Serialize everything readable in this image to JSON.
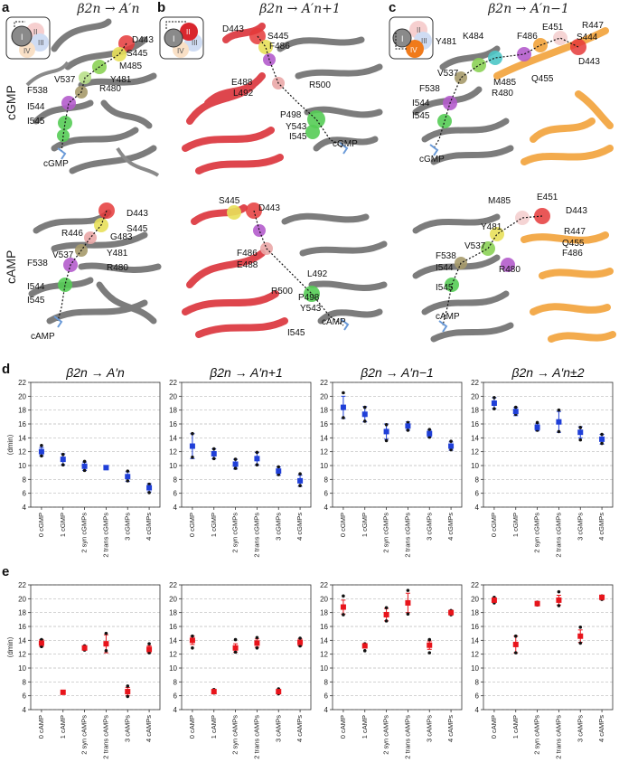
{
  "panel_letters": [
    "a",
    "b",
    "c",
    "d",
    "e"
  ],
  "row_labels": {
    "cgmp": "cGMP",
    "camp": "cAMP"
  },
  "top_titles": [
    "β2n → A′n",
    "β2n → A′n+1",
    "β2n → A′n−1"
  ],
  "legend_subunits": [
    "I",
    "II",
    "III",
    "IV"
  ],
  "structures": {
    "a_cgmp": {
      "labels": [
        "D443",
        "S445",
        "M485",
        "Y481",
        "R480",
        "F538",
        "V537",
        "I544",
        "I545",
        "cGMP"
      ]
    },
    "a_camp": {
      "labels": [
        "D443",
        "S445",
        "R446",
        "G483",
        "V537",
        "Y481",
        "F538",
        "R480",
        "I544",
        "I545",
        "cAMP"
      ]
    },
    "b_cgmp": {
      "labels": [
        "D443",
        "S445",
        "F486",
        "E488",
        "L492",
        "R500",
        "P498",
        "Y543",
        "I545",
        "cGMP"
      ]
    },
    "b_camp": {
      "labels": [
        "S445",
        "D443",
        "F486",
        "E488",
        "L492",
        "R500",
        "P498",
        "Y543",
        "I545",
        "cAMP"
      ]
    },
    "c_cgmp": {
      "labels": [
        "Y481",
        "K484",
        "F486",
        "E451",
        "R447",
        "S444",
        "D443",
        "V537",
        "M485",
        "Q455",
        "F538",
        "R480",
        "I544",
        "I545",
        "cGMP"
      ]
    },
    "c_camp": {
      "labels": [
        "M485",
        "E451",
        "D443",
        "R447",
        "Y481",
        "Q455",
        "F486",
        "V537",
        "F538",
        "I544",
        "R480",
        "I545",
        "cAMP"
      ]
    }
  },
  "colors": {
    "protein_grey": "#6e6e6e",
    "subunit_red": "#d9262e",
    "subunit_orange": "#f2a33a",
    "blue_marker": "#1f3fd8",
    "red_marker": "#e8141b",
    "grid": "#bbbbbb"
  },
  "chart_data": [
    {
      "id": "d1",
      "type": "scatter",
      "title": "β2n → A′n",
      "ylabel": "⟨dmin⟩",
      "ylim": [
        4,
        22
      ],
      "yticks": [
        4,
        6,
        8,
        10,
        12,
        14,
        16,
        18,
        20,
        22
      ],
      "grid": "horizontal dashed",
      "marker_color": "#1f3fd8",
      "categories": [
        "0 cGMP",
        "1 cGMP",
        "2 syn cGMPs",
        "2 trans cGMPs",
        "3 cGMPs",
        "4 cGMPs"
      ],
      "values": [
        12.0,
        10.9,
        9.9,
        9.7,
        8.4,
        6.8
      ],
      "errors": [
        0.6,
        0.8,
        0.6,
        0.3,
        0.7,
        0.6
      ],
      "points": [
        [
          12.9,
          11.4
        ],
        [
          11.6,
          10.1
        ],
        [
          10.6,
          9.3
        ],
        [
          9.8,
          9.6
        ],
        [
          9.2,
          7.8
        ],
        [
          7.3,
          6.1
        ]
      ]
    },
    {
      "id": "d2",
      "type": "scatter",
      "title": "β2n → A′n+1",
      "ylim": [
        4,
        22
      ],
      "yticks": [
        4,
        6,
        8,
        10,
        12,
        14,
        16,
        18,
        20,
        22
      ],
      "grid": "horizontal dashed",
      "marker_color": "#1f3fd8",
      "categories": [
        "0 cGMP",
        "1 cGMP",
        "2 syn cGMPs",
        "2 trans cGMPs",
        "3 cGMPs",
        "4 cGMPs"
      ],
      "values": [
        12.8,
        11.7,
        10.2,
        11.0,
        9.2,
        7.8
      ],
      "errors": [
        1.8,
        0.7,
        0.7,
        0.9,
        0.6,
        0.8
      ],
      "points": [
        [
          14.6,
          11.2
        ],
        [
          12.4,
          11.0
        ],
        [
          10.9,
          9.6
        ],
        [
          11.9,
          10.1
        ],
        [
          9.8,
          8.7
        ],
        [
          8.8,
          7.1
        ]
      ]
    },
    {
      "id": "d3",
      "type": "scatter",
      "title": "β2n → A′n−1",
      "ylim": [
        4,
        22
      ],
      "yticks": [
        4,
        6,
        8,
        10,
        12,
        14,
        16,
        18,
        20,
        22
      ],
      "grid": "horizontal dashed",
      "marker_color": "#1f3fd8",
      "categories": [
        "0 cGMP",
        "1 cGMP",
        "2 syn cGMPs",
        "2 trans cGMPs",
        "3 cGMPs",
        "4 cGMPs"
      ],
      "values": [
        18.4,
        17.4,
        14.9,
        15.7,
        14.6,
        12.8
      ],
      "errors": [
        1.6,
        1.1,
        1.1,
        0.6,
        0.5,
        0.6
      ],
      "points": [
        [
          20.5,
          16.9
        ],
        [
          18.4,
          16.4
        ],
        [
          15.9,
          13.6
        ],
        [
          16.2,
          15.1
        ],
        [
          15.2,
          14.1
        ],
        [
          13.5,
          12.3
        ]
      ]
    },
    {
      "id": "d4",
      "type": "scatter",
      "title": "β2n → A′n±2",
      "ylim": [
        4,
        22
      ],
      "yticks": [
        4,
        6,
        8,
        10,
        12,
        14,
        16,
        18,
        20,
        22
      ],
      "grid": "horizontal dashed",
      "marker_color": "#1f3fd8",
      "categories": [
        "0 cGMP",
        "1 cGMP",
        "2 syn cGMPs",
        "2 trans cGMPs",
        "3 cGMPs",
        "4 cGMPs"
      ],
      "values": [
        19.0,
        17.8,
        15.5,
        16.3,
        14.8,
        13.8
      ],
      "errors": [
        0.8,
        0.6,
        0.5,
        1.5,
        0.8,
        0.7
      ],
      "points": [
        [
          19.8,
          18.2
        ],
        [
          18.4,
          17.4
        ],
        [
          16.2,
          15.1
        ],
        [
          18.0,
          14.9
        ],
        [
          15.5,
          13.7
        ],
        [
          14.5,
          13.2
        ]
      ]
    },
    {
      "id": "e1",
      "type": "scatter",
      "title": "",
      "ylabel": "⟨dmin⟩",
      "ylim": [
        4,
        22
      ],
      "yticks": [
        4,
        6,
        8,
        10,
        12,
        14,
        16,
        18,
        20,
        22
      ],
      "grid": "horizontal dashed",
      "marker_color": "#e8141b",
      "categories": [
        "0 cAMP",
        "1 cAMP",
        "2 syn cAMPs",
        "2 trans cAMPs",
        "3 cAMPs",
        "4 cAMPs"
      ],
      "values": [
        13.6,
        6.5,
        12.9,
        13.5,
        6.6,
        12.7
      ],
      "errors": [
        0.5,
        0.2,
        0.3,
        1.3,
        0.6,
        0.5
      ],
      "points": [
        [
          14.1,
          13.1
        ],
        [
          6.6,
          6.4
        ],
        [
          13.2,
          12.6
        ],
        [
          15.0,
          12.5
        ],
        [
          7.4,
          5.9
        ],
        [
          13.5,
          12.2
        ]
      ]
    },
    {
      "id": "e2",
      "type": "scatter",
      "title": "",
      "ylim": [
        4,
        22
      ],
      "yticks": [
        4,
        6,
        8,
        10,
        12,
        14,
        16,
        18,
        20,
        22
      ],
      "grid": "horizontal dashed",
      "marker_color": "#e8141b",
      "categories": [
        "0 cAMP",
        "1 cAMP",
        "2 syn cAMPs",
        "2 trans cAMPs",
        "3 cAMPs",
        "4 cAMPs"
      ],
      "values": [
        14.0,
        6.6,
        12.9,
        13.6,
        6.6,
        13.7
      ],
      "errors": [
        0.6,
        0.2,
        0.6,
        0.6,
        0.2,
        0.5
      ],
      "points": [
        [
          14.6,
          12.9
        ],
        [
          6.9,
          6.4
        ],
        [
          14.1,
          12.3
        ],
        [
          14.4,
          12.9
        ],
        [
          7.0,
          6.3
        ],
        [
          14.3,
          13.2
        ]
      ]
    },
    {
      "id": "e3",
      "type": "scatter",
      "title": "",
      "ylim": [
        4,
        22
      ],
      "yticks": [
        4,
        6,
        8,
        10,
        12,
        14,
        16,
        18,
        20,
        22
      ],
      "grid": "horizontal dashed",
      "marker_color": "#e8141b",
      "categories": [
        "0 cAMP",
        "1 cAMP",
        "2 syn cAMPs",
        "2 trans cAMPs",
        "3 cAMPs",
        "4 cAMPs"
      ],
      "values": [
        18.8,
        13.2,
        17.7,
        19.4,
        13.3,
        18.0
      ],
      "errors": [
        1.0,
        0.3,
        0.9,
        1.4,
        0.6,
        0.3
      ],
      "points": [
        [
          20.4,
          17.7
        ],
        [
          13.5,
          12.5
        ],
        [
          18.7,
          16.8
        ],
        [
          21.2,
          17.8
        ],
        [
          14.1,
          12.2
        ],
        [
          18.3,
          17.7
        ]
      ]
    },
    {
      "id": "e4",
      "type": "scatter",
      "title": "",
      "ylim": [
        4,
        22
      ],
      "yticks": [
        4,
        6,
        8,
        10,
        12,
        14,
        16,
        18,
        20,
        22
      ],
      "grid": "horizontal dashed",
      "marker_color": "#e8141b",
      "categories": [
        "0 cAMP",
        "1 cAMP",
        "2 syn cAMPs",
        "2 trans cAMPs",
        "3 cAMPs",
        "4 cAMPs"
      ],
      "values": [
        19.8,
        13.4,
        19.3,
        19.8,
        14.6,
        20.2
      ],
      "errors": [
        0.3,
        1.2,
        0.2,
        0.7,
        0.9,
        0.2
      ],
      "points": [
        [
          20.2,
          19.4
        ],
        [
          14.6,
          12.2
        ],
        [
          19.5,
          19.1
        ],
        [
          21.0,
          19.0
        ],
        [
          15.9,
          13.6
        ],
        [
          20.4,
          19.9
        ]
      ]
    }
  ]
}
